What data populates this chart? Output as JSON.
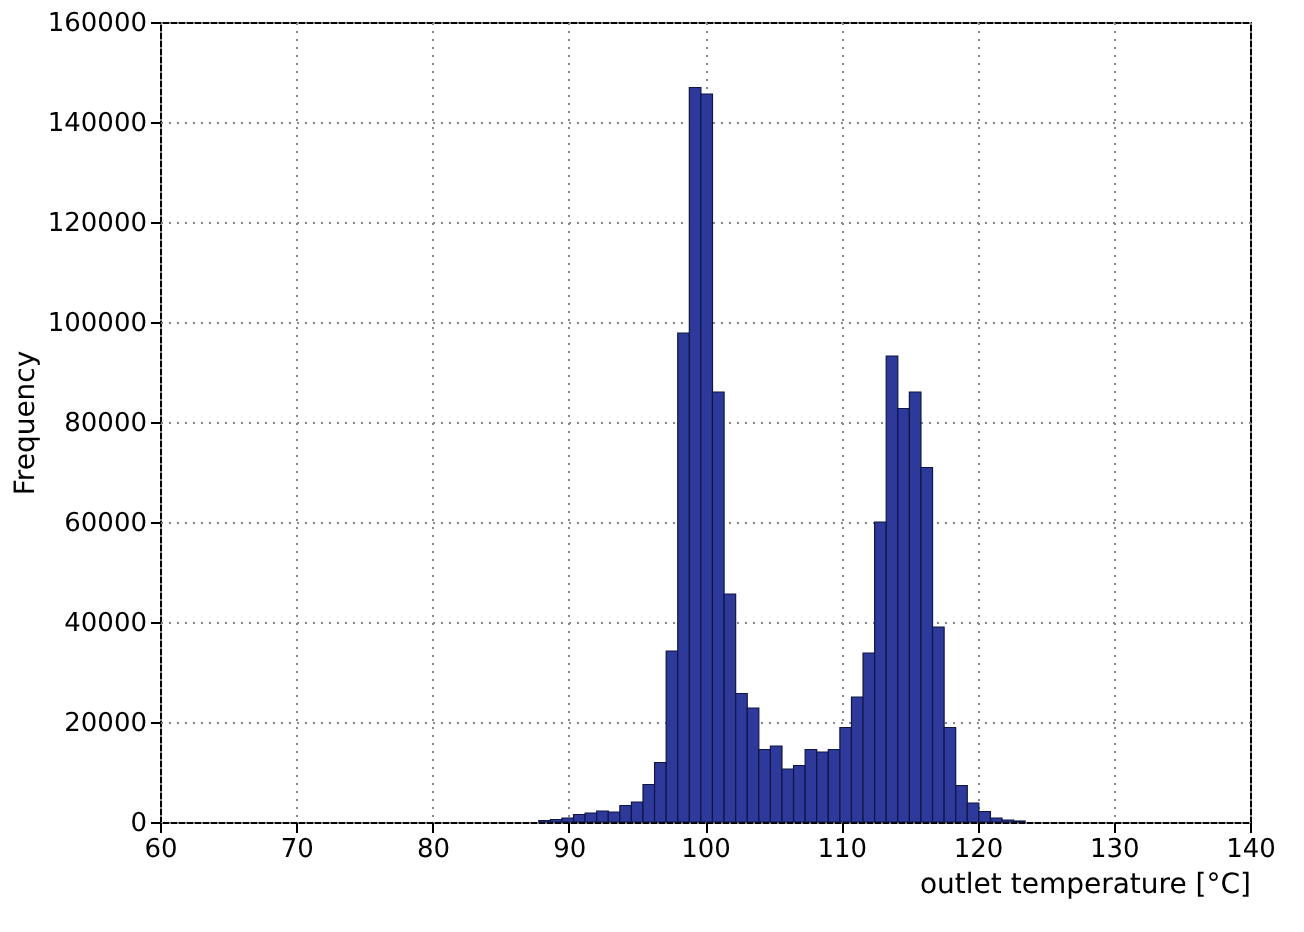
{
  "chart_data": {
    "type": "histogram",
    "xlabel": "outlet temperature [°C]",
    "ylabel": "Frequency",
    "color": "#2d3a9c",
    "bins": [
      87.8,
      88.65,
      89.5,
      90.35,
      91.2,
      92.05,
      92.9,
      93.75,
      94.6,
      95.45,
      96.3,
      97.15,
      98.0,
      98.85,
      99.7,
      100.55,
      101.4,
      102.25,
      103.1,
      103.95,
      104.8,
      105.65,
      106.5,
      107.35,
      108.2,
      109.05,
      109.9,
      110.75,
      111.6,
      112.45,
      113.3,
      114.15,
      115.0,
      115.85,
      116.7,
      117.55,
      118.4,
      119.25,
      120.1,
      120.95,
      121.8,
      122.65,
      123.5
    ],
    "values": [
      300,
      500,
      800,
      1500,
      1800,
      2200,
      2000,
      3300,
      4000,
      7500,
      11900,
      34200,
      97800,
      146900,
      145600,
      86000,
      45600,
      25700,
      22800,
      14500,
      15200,
      10600,
      11300,
      14500,
      14000,
      14500,
      18900,
      25000,
      33800,
      60000,
      93200,
      82700,
      86000,
      70900,
      39000,
      18900,
      7300,
      3800,
      2100,
      800,
      400,
      200
    ],
    "xlim": [
      60,
      140
    ],
    "xticks": [
      60,
      70,
      80,
      90,
      100,
      110,
      120,
      130,
      140
    ],
    "ylim": [
      0,
      160000
    ],
    "yticks": [
      0,
      20000,
      40000,
      60000,
      80000,
      100000,
      120000,
      140000,
      160000
    ],
    "grid": true
  }
}
